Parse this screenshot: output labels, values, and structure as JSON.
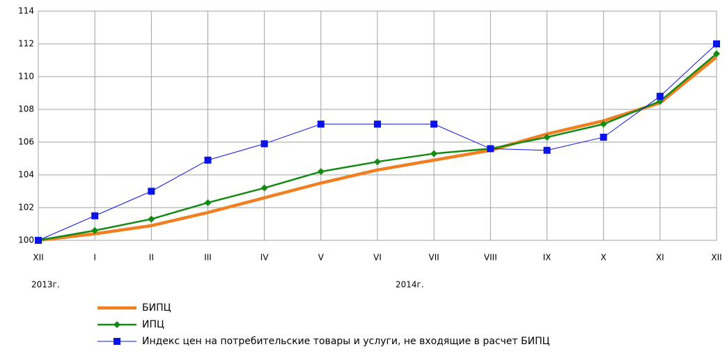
{
  "chart_data": {
    "type": "line",
    "categories": [
      "XII",
      "I",
      "II",
      "III",
      "IV",
      "V",
      "VI",
      "VII",
      "VIII",
      "IX",
      "X",
      "XI",
      "XII"
    ],
    "annotations": [
      "2013г.",
      "2014г."
    ],
    "series": [
      {
        "name": "БИПЦ",
        "color": "#f07f22",
        "values": [
          100,
          100.4,
          100.9,
          101.7,
          102.6,
          103.5,
          104.3,
          104.9,
          105.5,
          106.5,
          107.3,
          108.4,
          111.2
        ]
      },
      {
        "name": "ИПЦ",
        "color": "#138a13",
        "values": [
          100,
          100.6,
          101.3,
          102.3,
          103.2,
          104.2,
          104.8,
          105.3,
          105.6,
          106.3,
          107.1,
          108.5,
          111.4
        ]
      },
      {
        "name": "Индекс цен на потребительские товары и услуги, не входящие в расчет БИПЦ",
        "color": "#0a14e6",
        "values": [
          100,
          101.5,
          103.0,
          104.9,
          105.9,
          107.1,
          107.1,
          107.1,
          105.6,
          105.5,
          106.3,
          108.8,
          112.0
        ]
      }
    ],
    "ylim": [
      100,
      114
    ],
    "yticks": [
      100,
      102,
      104,
      106,
      108,
      110,
      112,
      114
    ],
    "grid": true
  }
}
